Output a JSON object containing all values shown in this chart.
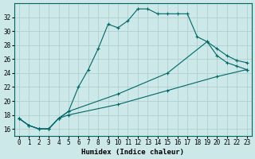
{
  "background_color": "#cce8e8",
  "grid_color": "#aacccc",
  "line_color": "#006666",
  "xlabel": "Humidex (Indice chaleur)",
  "xlim_min": -0.5,
  "xlim_max": 23.5,
  "ylim_min": 15.0,
  "ylim_max": 34.0,
  "xticks": [
    0,
    1,
    2,
    3,
    4,
    5,
    6,
    7,
    8,
    9,
    10,
    11,
    12,
    13,
    14,
    15,
    16,
    17,
    18,
    19,
    20,
    21,
    22,
    23
  ],
  "yticks": [
    16,
    18,
    20,
    22,
    24,
    26,
    28,
    30,
    32
  ],
  "curve1_x": [
    0,
    1,
    2,
    3,
    4,
    5,
    6,
    7,
    8,
    9,
    10,
    11,
    12,
    13,
    14,
    15,
    16,
    17,
    18,
    19,
    20,
    21,
    22,
    23
  ],
  "curve1_y": [
    17.5,
    16.5,
    16.0,
    16.0,
    17.5,
    18.5,
    22.0,
    24.5,
    27.5,
    31.0,
    30.5,
    31.5,
    33.2,
    33.2,
    32.5,
    32.5,
    32.5,
    32.5,
    29.2,
    28.5,
    26.5,
    25.5,
    25.0,
    24.5
  ],
  "curve2_x": [
    0,
    1,
    2,
    3,
    4,
    5,
    10,
    15,
    19,
    20,
    21,
    22,
    23
  ],
  "curve2_y": [
    17.5,
    16.5,
    16.0,
    16.0,
    17.5,
    18.5,
    21.0,
    24.0,
    28.5,
    27.5,
    26.5,
    25.8,
    25.5
  ],
  "curve3_x": [
    0,
    1,
    2,
    3,
    4,
    5,
    10,
    15,
    20,
    23
  ],
  "curve3_y": [
    17.5,
    16.5,
    16.0,
    16.0,
    17.5,
    18.0,
    19.5,
    21.5,
    23.5,
    24.5
  ]
}
